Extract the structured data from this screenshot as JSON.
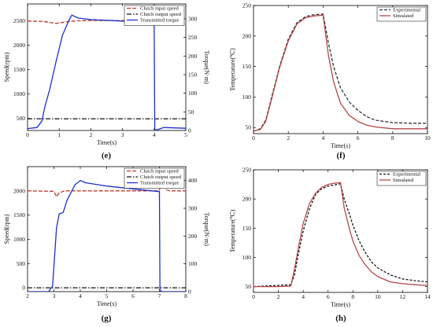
{
  "figure": {
    "panels": [
      {
        "id": "e",
        "caption": "(e)"
      },
      {
        "id": "f",
        "caption": "(f)"
      },
      {
        "id": "g",
        "caption": "(g)"
      },
      {
        "id": "h",
        "caption": "(h)"
      }
    ]
  },
  "chart_data": [
    {
      "id": "e",
      "type": "line",
      "caption": "(e)",
      "xlabel": "Time(s)",
      "ylabel": "Speed(rpm)",
      "y2label": "Torque(N·m)",
      "xlim": [
        0,
        5
      ],
      "ylim": [
        250,
        2850
      ],
      "y2lim": [
        0,
        340
      ],
      "xticks": [
        0,
        1,
        2,
        3,
        4,
        5
      ],
      "yticks": [
        500,
        1000,
        1500,
        2000,
        2500
      ],
      "y2ticks": [
        0,
        50,
        100,
        150,
        200,
        250,
        300
      ],
      "grid": false,
      "legend_position": "top-right",
      "series": [
        {
          "name": "Clutch input speed",
          "axis": "left",
          "color": "#c0392b",
          "dash": "5,2",
          "x": [
            0,
            0.5,
            0.9,
            1.0,
            1.3,
            1.6,
            2.0,
            3.0,
            3.9,
            4.0,
            4.05,
            4.1,
            4.2,
            4.4,
            5.0
          ],
          "y": [
            2500,
            2490,
            2450,
            2460,
            2490,
            2505,
            2510,
            2510,
            2510,
            2590,
            2760,
            2560,
            2500,
            2500,
            2500
          ]
        },
        {
          "name": "Clutch output speed",
          "axis": "left",
          "color": "#111111",
          "dash": "6,2,1.5,2",
          "x": [
            0,
            5
          ],
          "y": [
            490,
            490
          ]
        },
        {
          "name": "Transmitted torque",
          "axis": "right",
          "color": "#1e2fd0",
          "dash": "",
          "x": [
            0,
            0.3,
            0.45,
            0.55,
            0.7,
            0.9,
            1.1,
            1.3,
            1.4,
            1.6,
            2.0,
            3.0,
            4.0,
            4.02,
            4.1,
            4.3,
            5.0
          ],
          "y": [
            5,
            8,
            25,
            65,
            110,
            185,
            255,
            295,
            310,
            302,
            298,
            294,
            290,
            2,
            2,
            8,
            6
          ]
        }
      ]
    },
    {
      "id": "f",
      "type": "line",
      "caption": "(f)",
      "xlabel": "Time(s)",
      "ylabel": "Temperature(℃)",
      "xlim": [
        0,
        10
      ],
      "ylim": [
        40,
        250
      ],
      "xticks": [
        0,
        2,
        4,
        6,
        8,
        10
      ],
      "yticks": [
        50,
        100,
        150,
        200,
        250
      ],
      "grid": false,
      "legend_position": "top-right",
      "series": [
        {
          "name": "Experimental",
          "color": "#333333",
          "dash": "4,2",
          "x": [
            0,
            0.4,
            0.7,
            1.0,
            1.5,
            2.0,
            2.5,
            3.0,
            3.5,
            4.0,
            4.3,
            4.6,
            5.0,
            5.5,
            6.0,
            6.5,
            7.0,
            8.0,
            9.0,
            10.0
          ],
          "y": [
            44,
            48,
            62,
            95,
            150,
            195,
            222,
            232,
            235,
            236,
            190,
            150,
            115,
            92,
            78,
            68,
            62,
            58,
            57,
            57
          ]
        },
        {
          "name": "Simulated",
          "color": "#b5474a",
          "dash": "",
          "x": [
            0,
            0.4,
            0.7,
            1.0,
            1.5,
            2.0,
            2.5,
            3.0,
            3.5,
            4.0,
            4.3,
            4.6,
            5.0,
            5.5,
            6.0,
            6.5,
            7.0,
            8.0,
            9.0,
            10.0
          ],
          "y": [
            44,
            47,
            60,
            92,
            148,
            192,
            220,
            230,
            233,
            234,
            170,
            125,
            90,
            70,
            60,
            54,
            51,
            48,
            48,
            48
          ]
        }
      ]
    },
    {
      "id": "g",
      "type": "line",
      "caption": "(g)",
      "xlabel": "Time(s)",
      "ylabel": "Speed(rpm)",
      "y2label": "Torque(N·m)",
      "xlim": [
        2,
        8
      ],
      "ylim": [
        -80,
        2500
      ],
      "y2lim": [
        0,
        450
      ],
      "xticks": [
        2,
        3,
        4,
        5,
        6,
        7,
        8
      ],
      "yticks": [
        0,
        500,
        1000,
        1500,
        2000
      ],
      "y2ticks": [
        0,
        100,
        200,
        300,
        400
      ],
      "grid": false,
      "legend_position": "top-right",
      "series": [
        {
          "name": "Clutch input speed",
          "axis": "left",
          "color": "#c0392b",
          "dash": "5,2",
          "x": [
            2,
            3.0,
            3.1,
            3.2,
            3.4,
            4.0,
            5.0,
            6.0,
            7.0,
            7.05,
            7.1,
            7.15,
            7.25,
            7.4,
            8.0
          ],
          "y": [
            2000,
            1990,
            1880,
            1960,
            2000,
            2000,
            2000,
            2000,
            2000,
            2230,
            2080,
            2250,
            2020,
            2000,
            2000
          ]
        },
        {
          "name": "Clutch output speed",
          "axis": "left",
          "color": "#111111",
          "dash": "6,2,1.5,2",
          "x": [
            2,
            8
          ],
          "y": [
            0,
            0
          ]
        },
        {
          "name": "Transmitted torque",
          "axis": "right",
          "color": "#1e2fd0",
          "dash": "",
          "x": [
            2,
            2.8,
            2.95,
            3.1,
            3.2,
            3.35,
            3.5,
            3.8,
            4.0,
            4.2,
            5.0,
            6.0,
            7.0,
            7.02,
            7.1,
            8.0
          ],
          "y": [
            0,
            0,
            20,
            230,
            280,
            285,
            330,
            385,
            400,
            392,
            380,
            370,
            360,
            5,
            0,
            0
          ]
        }
      ]
    },
    {
      "id": "h",
      "type": "line",
      "caption": "(h)",
      "xlabel": "Time(s)",
      "ylabel": "Temperature(℃)",
      "xlim": [
        0,
        14
      ],
      "ylim": [
        40,
        250
      ],
      "xticks": [
        0,
        2,
        4,
        6,
        8,
        10,
        12,
        14
      ],
      "yticks": [
        50,
        100,
        150,
        200,
        250
      ],
      "grid": false,
      "legend_position": "top-right",
      "series": [
        {
          "name": "Experimental",
          "color": "#111111",
          "dash": "3,2",
          "x": [
            0,
            1.0,
            2.0,
            3.0,
            3.3,
            3.6,
            4.0,
            4.5,
            5.0,
            5.5,
            6.0,
            6.5,
            7.0,
            7.3,
            7.7,
            8.0,
            8.5,
            9.0,
            9.5,
            10.0,
            11.0,
            12.0,
            13.0,
            14.0
          ],
          "y": [
            50,
            51,
            52,
            53,
            70,
            105,
            145,
            183,
            208,
            218,
            222,
            224,
            226,
            200,
            175,
            155,
            128,
            108,
            92,
            82,
            70,
            63,
            60,
            58
          ]
        },
        {
          "name": "Simulated",
          "color": "#b5474a",
          "dash": "",
          "x": [
            0,
            1.0,
            2.0,
            3.0,
            3.3,
            3.6,
            4.0,
            4.5,
            5.0,
            5.5,
            6.0,
            6.5,
            7.0,
            7.3,
            7.7,
            8.0,
            8.5,
            9.0,
            9.5,
            10.0,
            11.0,
            12.0,
            13.0,
            14.0
          ],
          "y": [
            50,
            50,
            50,
            51,
            80,
            115,
            158,
            192,
            210,
            220,
            225,
            227,
            228,
            185,
            150,
            128,
            103,
            87,
            75,
            67,
            58,
            55,
            53,
            52
          ]
        }
      ]
    }
  ]
}
